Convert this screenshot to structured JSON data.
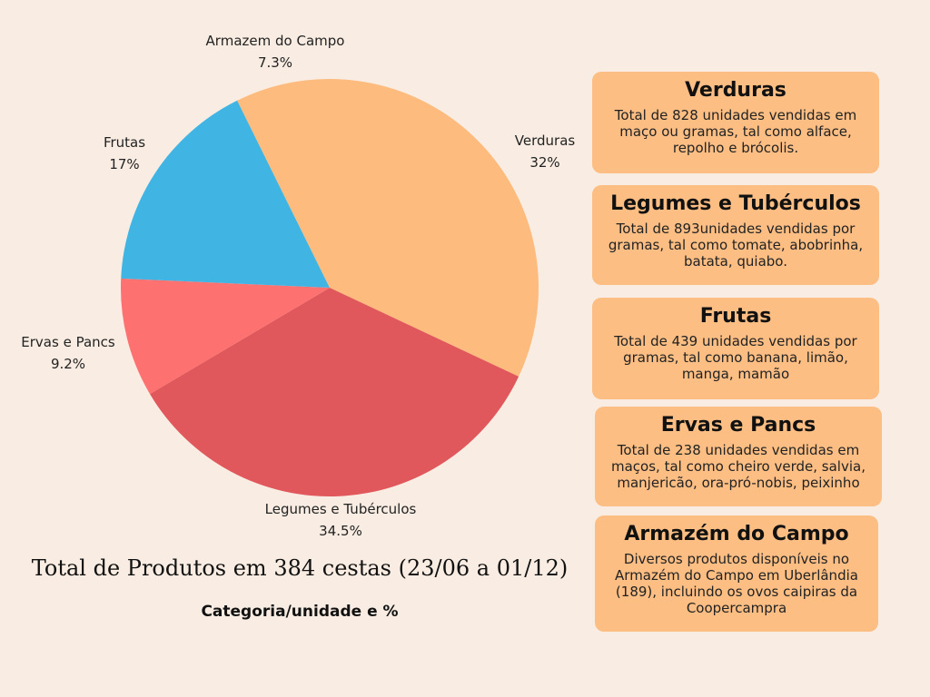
{
  "chart_data": {
    "type": "pie",
    "title": "Total de Produtos em 384 cestas (23/06 a  01/12)",
    "subtitle": "Categoria/unidade e %",
    "slices": [
      {
        "label": "Verduras",
        "value": 32,
        "display": "32%",
        "color": "#fdbb7d"
      },
      {
        "label": "Legumes e Tubérculos",
        "value": 34.5,
        "display": "34.5%",
        "color": "#e0585c"
      },
      {
        "label": "Ervas e Pancs",
        "value": 9.2,
        "display": "9.2%",
        "color": "#fd7270"
      },
      {
        "label": "Frutas",
        "value": 17,
        "display": "17%",
        "color": "#40b4e3"
      },
      {
        "label": "Armazem do Campo",
        "value": 7.3,
        "display": "7.3%",
        "color": "#fdbb7d"
      }
    ]
  },
  "cards": [
    {
      "title": "Verduras",
      "text": "Total de 828 unidades vendidas em maço ou gramas, tal como alface, repolho e brócolis."
    },
    {
      "title": "Legumes e Tubérculos",
      "text": "Total de 893unidades vendidas por gramas, tal como tomate, abobrinha, batata, quiabo."
    },
    {
      "title": "Frutas",
      "text": "Total de 439 unidades vendidas por gramas, tal como banana, limão, manga, mamão"
    },
    {
      "title": "Ervas e Pancs",
      "text": "Total de 238 unidades vendidas em maços, tal como cheiro verde, salvia, manjericão, ora-pró-nobis, peixinho"
    },
    {
      "title": "Armazém do Campo",
      "text": "Diversos produtos disponíveis no Armazém do Campo em Uberlândia (189), incluindo os ovos caipiras da Coopercampra"
    }
  ]
}
